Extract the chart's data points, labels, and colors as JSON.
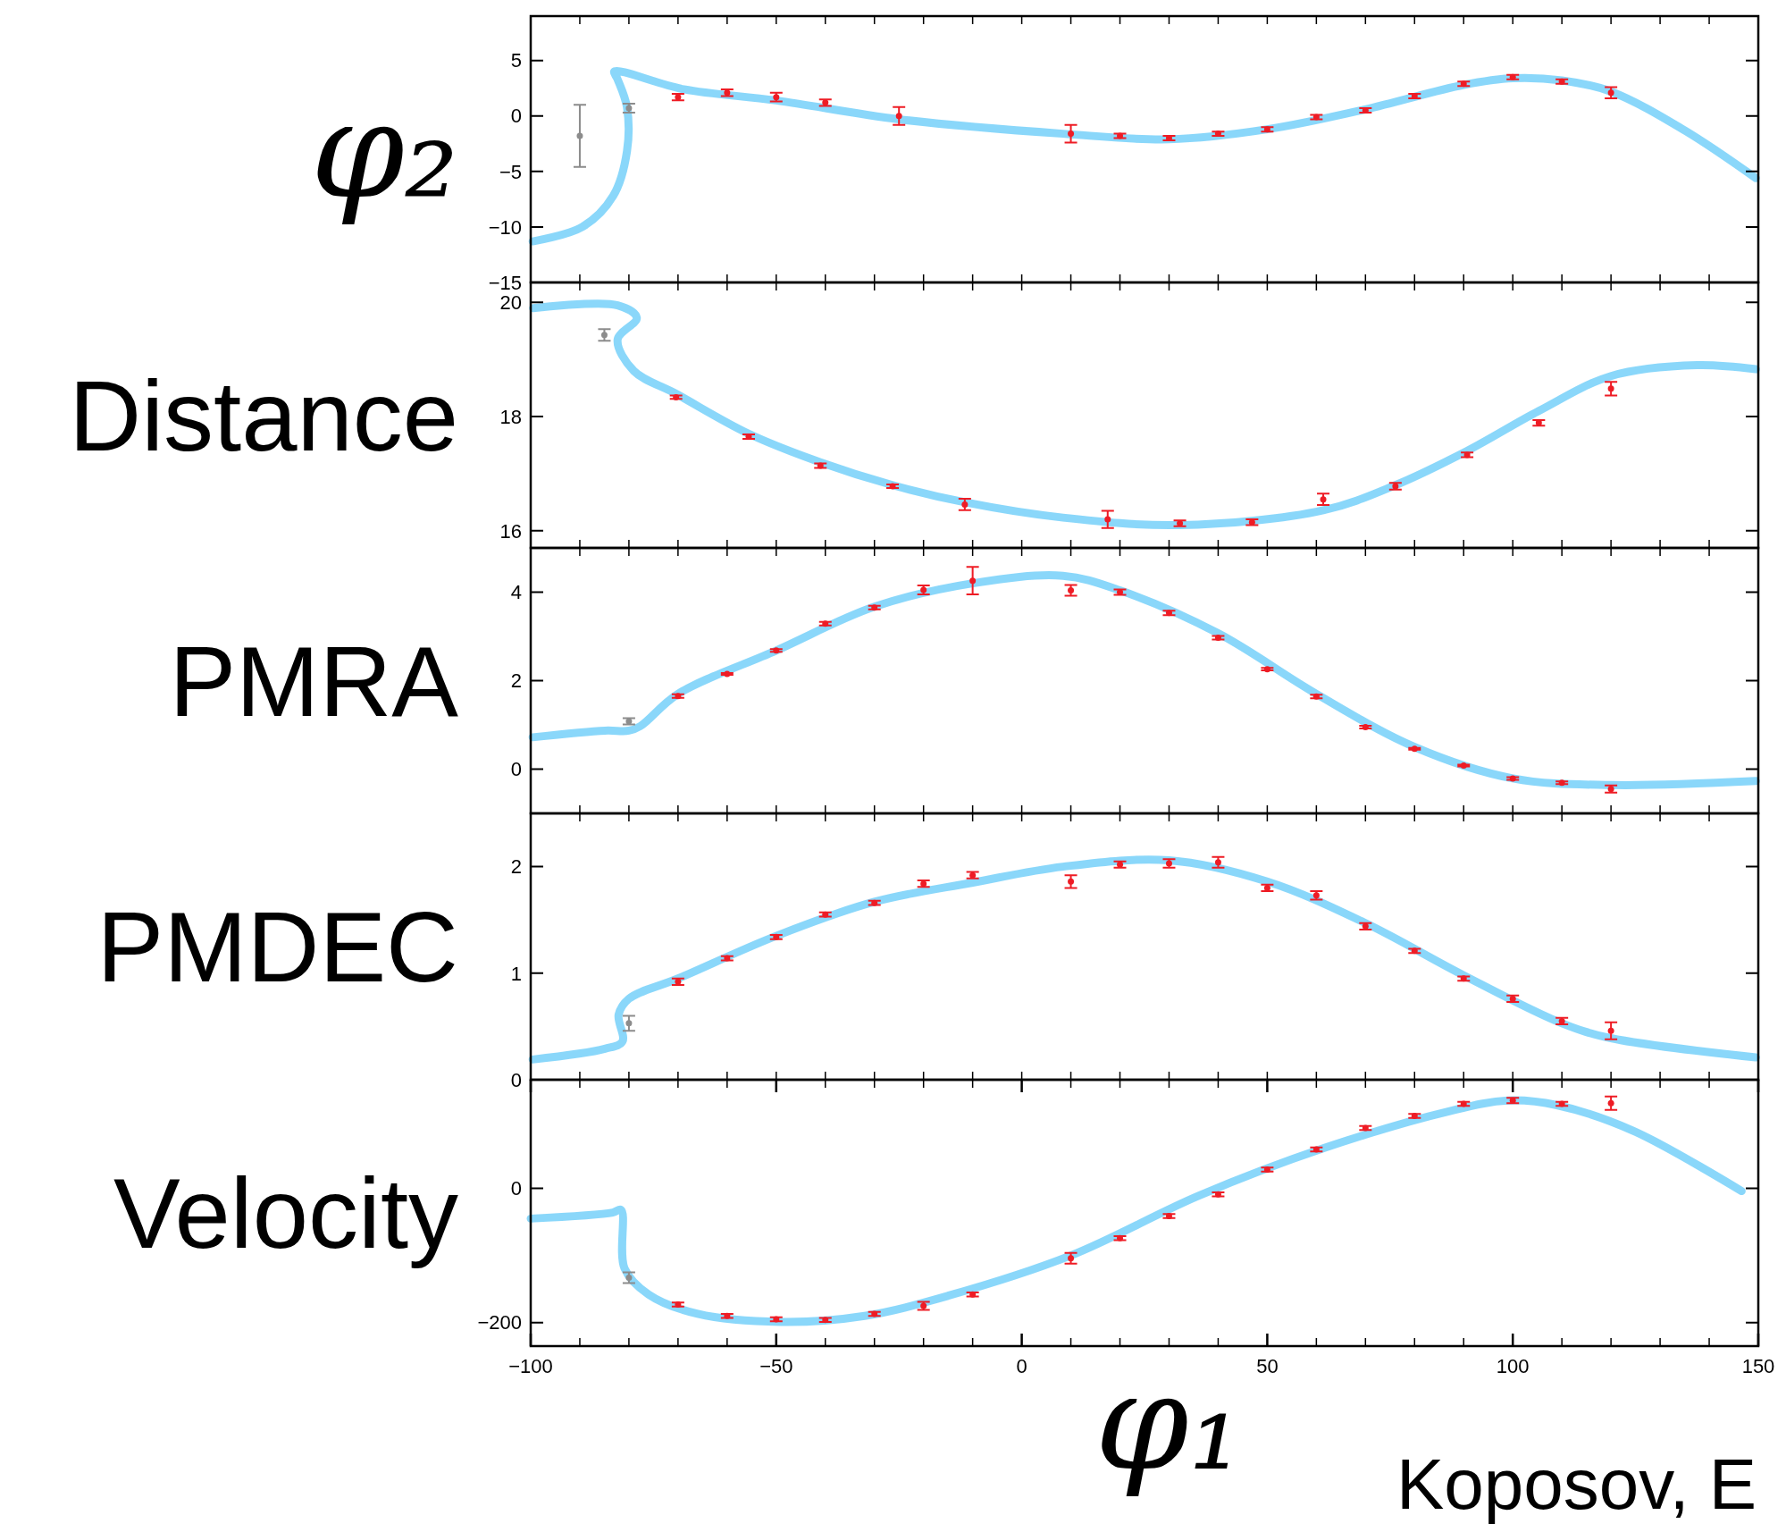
{
  "chart_data": [
    {
      "type": "scatter",
      "ylabel": "φ₂",
      "xlim": [
        -100,
        150
      ],
      "ylim": [
        -15,
        9
      ],
      "yticks": [
        {
          "value": -15,
          "label": "−15"
        },
        {
          "value": -10,
          "label": "−10"
        },
        {
          "value": -5,
          "label": "−5"
        },
        0,
        5
      ],
      "xticks": [
        {
          "value": -100,
          "label": null
        },
        {
          "value": -90,
          "label": null
        },
        {
          "value": -80,
          "label": null
        },
        {
          "value": -70,
          "label": null
        },
        {
          "value": -60,
          "label": null
        },
        {
          "value": -50,
          "label": null
        },
        {
          "value": -40,
          "label": null
        },
        {
          "value": -30,
          "label": null
        },
        {
          "value": -20,
          "label": null
        },
        {
          "value": -10,
          "label": null
        },
        {
          "value": 0,
          "label": null
        },
        {
          "value": 10,
          "label": null
        },
        {
          "value": 20,
          "label": null
        },
        {
          "value": 30,
          "label": null
        },
        {
          "value": 40,
          "label": null
        },
        {
          "value": 50,
          "label": null
        },
        {
          "value": 60,
          "label": null
        },
        {
          "value": 70,
          "label": null
        },
        {
          "value": 80,
          "label": null
        },
        {
          "value": 90,
          "label": null
        },
        {
          "value": 100,
          "label": null
        },
        {
          "value": 110,
          "label": null
        },
        {
          "value": 120,
          "label": null
        },
        {
          "value": 130,
          "label": null
        },
        {
          "value": 140,
          "label": null
        },
        {
          "value": 150,
          "label": null
        }
      ],
      "tick_labels": "y",
      "grid": false,
      "series": [
        {
          "type": "line",
          "color": "#29b6f6",
          "x": [
            -99.6,
            -89.5,
            -83.2,
            -80.4,
            -80.4,
            -82.3,
            -83,
            -68.8,
            -50,
            -25,
            8.4,
            30,
            50,
            70,
            90,
            100,
            110,
            120,
            135,
            149.5
          ],
          "values": [
            -11.3,
            -10,
            -7.2,
            -3.2,
            0.8,
            3.3,
            4,
            2.4,
            1.4,
            -0.3,
            -1.6,
            -2.1,
            -1.2,
            0.6,
            2.8,
            3.4,
            3.2,
            2.2,
            -1.3,
            -5.6
          ]
        },
        {
          "color": "#8c8c8c",
          "x": [
            -90
          ],
          "values": [
            -1.8
          ],
          "errors": [
            2.8
          ]
        },
        {
          "color": "#8c8c8c",
          "x": [
            -80
          ],
          "values": [
            0.7
          ],
          "errors": [
            0.4
          ]
        },
        {
          "color": "#ee1c25",
          "x": [
            -70,
            -60,
            -50,
            -40,
            -25,
            10,
            20,
            30,
            40,
            50,
            60,
            70,
            80,
            90,
            100,
            110,
            120
          ],
          "values": [
            1.7,
            2.1,
            1.7,
            1.2,
            0,
            -1.6,
            -1.8,
            -2.0,
            -1.6,
            -1.2,
            -0.1,
            0.5,
            1.8,
            2.9,
            3.5,
            3.1,
            2.1
          ],
          "errors": [
            0.3,
            0.3,
            0.4,
            0.3,
            0.8,
            0.8,
            0.2,
            0.2,
            0.2,
            0.2,
            0.2,
            0.2,
            0.2,
            0.2,
            0.2,
            0.2,
            0.5
          ]
        }
      ]
    },
    {
      "type": "scatter",
      "ylabel": "Distance",
      "xlim": [
        -100,
        150
      ],
      "ylim": [
        15.7,
        20.35
      ],
      "yticks": [
        16,
        18,
        20
      ],
      "xticks": [
        {
          "value": -100,
          "label": null
        },
        {
          "value": -90,
          "label": null
        },
        {
          "value": -80,
          "label": null
        },
        {
          "value": -70,
          "label": null
        },
        {
          "value": -60,
          "label": null
        },
        {
          "value": -50,
          "label": null
        },
        {
          "value": -40,
          "label": null
        },
        {
          "value": -30,
          "label": null
        },
        {
          "value": -20,
          "label": null
        },
        {
          "value": -10,
          "label": null
        },
        {
          "value": 0,
          "label": null
        },
        {
          "value": 10,
          "label": null
        },
        {
          "value": 20,
          "label": null
        },
        {
          "value": 30,
          "label": null
        },
        {
          "value": 40,
          "label": null
        },
        {
          "value": 50,
          "label": null
        },
        {
          "value": 60,
          "label": null
        },
        {
          "value": 70,
          "label": null
        },
        {
          "value": 80,
          "label": null
        },
        {
          "value": 90,
          "label": null
        },
        {
          "value": 100,
          "label": null
        },
        {
          "value": 110,
          "label": null
        },
        {
          "value": 120,
          "label": null
        },
        {
          "value": 130,
          "label": null
        },
        {
          "value": 140,
          "label": null
        },
        {
          "value": 150,
          "label": null
        }
      ],
      "tick_labels": "y",
      "grid": false,
      "series": [
        {
          "type": "line",
          "color": "#29b6f6",
          "x": [
            -99.5,
            -82.3,
            -78.4,
            -82.3,
            -79,
            -70.4,
            -55.6,
            -41,
            -26.3,
            -11.6,
            8.4,
            32.2,
            61.4,
            76.1,
            90.7,
            105.3,
            120,
            137.5,
            149.5
          ],
          "values": [
            19.9,
            19.95,
            19.73,
            19.35,
            18.8,
            18.4,
            17.7,
            17.2,
            16.8,
            16.5,
            16.23,
            16.1,
            16.36,
            16.8,
            17.4,
            18.1,
            18.71,
            18.9,
            18.83
          ]
        },
        {
          "color": "#8c8c8c",
          "x": [
            -85
          ],
          "values": [
            19.43
          ],
          "errors": [
            0.1
          ]
        },
        {
          "color": "#ee1c25",
          "x": [
            -70.4,
            -55.6,
            -41,
            -26.3,
            -11.6,
            17.5,
            32.2,
            46.9,
            61.4,
            76.1,
            90.7,
            105.3,
            120
          ],
          "values": [
            18.34,
            17.65,
            17.14,
            16.78,
            16.46,
            16.2,
            16.13,
            16.15,
            16.55,
            16.78,
            17.33,
            17.89,
            18.49
          ],
          "errors": [
            0.03,
            0.04,
            0.04,
            0.03,
            0.1,
            0.15,
            0.05,
            0.05,
            0.1,
            0.06,
            0.04,
            0.05,
            0.12
          ]
        }
      ]
    },
    {
      "type": "scatter",
      "ylabel": "PMRA",
      "xlim": [
        -100,
        150
      ],
      "ylim": [
        -1,
        5
      ],
      "yticks": [
        0,
        2,
        4
      ],
      "xticks": [
        {
          "value": -100,
          "label": null
        },
        {
          "value": -90,
          "label": null
        },
        {
          "value": -80,
          "label": null
        },
        {
          "value": -70,
          "label": null
        },
        {
          "value": -60,
          "label": null
        },
        {
          "value": -50,
          "label": null
        },
        {
          "value": -40,
          "label": null
        },
        {
          "value": -30,
          "label": null
        },
        {
          "value": -20,
          "label": null
        },
        {
          "value": -10,
          "label": null
        },
        {
          "value": 0,
          "label": null
        },
        {
          "value": 10,
          "label": null
        },
        {
          "value": 20,
          "label": null
        },
        {
          "value": 30,
          "label": null
        },
        {
          "value": 40,
          "label": null
        },
        {
          "value": 50,
          "label": null
        },
        {
          "value": 60,
          "label": null
        },
        {
          "value": 70,
          "label": null
        },
        {
          "value": 80,
          "label": null
        },
        {
          "value": 90,
          "label": null
        },
        {
          "value": 100,
          "label": null
        },
        {
          "value": 110,
          "label": null
        },
        {
          "value": 120,
          "label": null
        },
        {
          "value": 130,
          "label": null
        },
        {
          "value": 140,
          "label": null
        },
        {
          "value": 150,
          "label": null
        }
      ],
      "tick_labels": "y",
      "grid": false,
      "series": [
        {
          "type": "line",
          "color": "#29b6f6",
          "x": [
            -99.6,
            -84.9,
            -80,
            -77.7,
            -70,
            -50,
            -30,
            -10,
            8.4,
            20,
            40,
            60,
            80,
            100,
            120,
            149.5
          ],
          "values": [
            0.72,
            0.87,
            0.87,
            0.97,
            1.7,
            2.68,
            3.67,
            4.2,
            4.37,
            4.04,
            3.07,
            1.7,
            0.5,
            -0.21,
            -0.36,
            -0.27
          ]
        },
        {
          "color": "#8c8c8c",
          "x": [
            -80
          ],
          "values": [
            1.08
          ],
          "errors": [
            0.07
          ]
        },
        {
          "color": "#ee1c25",
          "x": [
            -70,
            -60,
            -50,
            -40,
            -30,
            -20,
            -10,
            10,
            20,
            30,
            40,
            50,
            60,
            70,
            80,
            90,
            100,
            110,
            120
          ],
          "values": [
            1.65,
            2.15,
            2.68,
            3.29,
            3.65,
            4.05,
            4.26,
            4.04,
            4.0,
            3.53,
            2.97,
            2.26,
            1.64,
            0.95,
            0.46,
            0.08,
            -0.21,
            -0.31,
            -0.45
          ],
          "errors": [
            0.04,
            0.02,
            0.03,
            0.04,
            0.04,
            0.1,
            0.31,
            0.12,
            0.06,
            0.05,
            0.04,
            0.03,
            0.04,
            0.03,
            0.02,
            0.02,
            0.03,
            0.03,
            0.08
          ]
        }
      ]
    },
    {
      "type": "scatter",
      "ylabel": "PMDEC",
      "xlim": [
        -100,
        150
      ],
      "ylim": [
        0,
        2.5
      ],
      "yticks": [
        0,
        1,
        2
      ],
      "xticks": [
        {
          "value": -100,
          "label": null
        },
        {
          "value": -90,
          "label": null
        },
        {
          "value": -80,
          "label": null
        },
        {
          "value": -70,
          "label": null
        },
        {
          "value": -60,
          "label": null
        },
        {
          "value": -50,
          "label": null
        },
        {
          "value": -40,
          "label": null
        },
        {
          "value": -30,
          "label": null
        },
        {
          "value": -20,
          "label": null
        },
        {
          "value": -10,
          "label": null
        },
        {
          "value": 0,
          "label": null
        },
        {
          "value": 10,
          "label": null
        },
        {
          "value": 20,
          "label": null
        },
        {
          "value": 30,
          "label": null
        },
        {
          "value": 40,
          "label": null
        },
        {
          "value": 50,
          "label": null
        },
        {
          "value": 60,
          "label": null
        },
        {
          "value": 70,
          "label": null
        },
        {
          "value": 80,
          "label": null
        },
        {
          "value": 90,
          "label": null
        },
        {
          "value": 100,
          "label": null
        },
        {
          "value": 110,
          "label": null
        },
        {
          "value": 120,
          "label": null
        },
        {
          "value": 130,
          "label": null
        },
        {
          "value": 140,
          "label": null
        },
        {
          "value": 150,
          "label": null
        }
      ],
      "tick_labels": "y",
      "grid": false,
      "series": [
        {
          "type": "line",
          "color": "#29b6f6",
          "x": [
            -99.6,
            -84.9,
            -81.3,
            -82.1,
            -80,
            -70,
            -50,
            -30,
            -10,
            8.4,
            30,
            50,
            70,
            90,
            110,
            120,
            149.5
          ],
          "values": [
            0.19,
            0.29,
            0.36,
            0.61,
            0.76,
            0.95,
            1.35,
            1.67,
            1.85,
            2.0,
            2.06,
            1.86,
            1.47,
            0.98,
            0.53,
            0.39,
            0.21
          ]
        },
        {
          "color": "#8c8c8c",
          "x": [
            -80
          ],
          "values": [
            0.53
          ],
          "errors": [
            0.07
          ]
        },
        {
          "color": "#ee1c25",
          "x": [
            -70,
            -60,
            -50,
            -40,
            -30,
            -20,
            -10,
            10,
            20,
            30,
            40,
            50,
            60,
            70,
            80,
            90,
            100,
            110,
            120
          ],
          "values": [
            0.92,
            1.14,
            1.34,
            1.55,
            1.66,
            1.84,
            1.92,
            1.86,
            2.02,
            2.03,
            2.04,
            1.8,
            1.73,
            1.44,
            1.21,
            0.95,
            0.76,
            0.55,
            0.46
          ],
          "errors": [
            0.03,
            0.02,
            0.02,
            0.02,
            0.02,
            0.03,
            0.03,
            0.06,
            0.03,
            0.04,
            0.05,
            0.03,
            0.04,
            0.03,
            0.02,
            0.02,
            0.03,
            0.03,
            0.08
          ]
        }
      ]
    },
    {
      "type": "scatter",
      "ylabel": "Velocity",
      "xlabel": "φ₁",
      "annotations": [
        "Koposov, E"
      ],
      "xlim": [
        -100,
        150
      ],
      "ylim": [
        -235,
        162
      ],
      "yticks": [
        {
          "value": -200,
          "label": "−200"
        },
        0
      ],
      "xticks": [
        {
          "value": -100,
          "label": "−100"
        },
        {
          "value": -90,
          "label": null
        },
        {
          "value": -80,
          "label": null
        },
        {
          "value": -70,
          "label": null
        },
        {
          "value": -60,
          "label": null
        },
        {
          "value": -50,
          "label": "−50"
        },
        {
          "value": -40,
          "label": null
        },
        {
          "value": -30,
          "label": null
        },
        {
          "value": -20,
          "label": null
        },
        {
          "value": -10,
          "label": null
        },
        0,
        {
          "value": 10,
          "label": null
        },
        {
          "value": 20,
          "label": null
        },
        {
          "value": 30,
          "label": null
        },
        {
          "value": 40,
          "label": null
        },
        50,
        {
          "value": 60,
          "label": null
        },
        {
          "value": 70,
          "label": null
        },
        {
          "value": 80,
          "label": null
        },
        {
          "value": 90,
          "label": null
        },
        100,
        {
          "value": 110,
          "label": null
        },
        {
          "value": 120,
          "label": null
        },
        {
          "value": 130,
          "label": null
        },
        {
          "value": 140,
          "label": null
        },
        150
      ],
      "grid": false,
      "series": [
        {
          "type": "line",
          "color": "#29b6f6",
          "x": [
            -100,
            -83.3,
            -81.6,
            -80.9,
            -76,
            -66,
            -49,
            -32,
            -15,
            10,
            36,
            61.5,
            87,
            99,
            109,
            124.5,
            146.6
          ],
          "values": [
            -45,
            -36,
            -32,
            -119,
            -158,
            -187,
            -199,
            -190,
            -160,
            -100,
            -11,
            60,
            115,
            131,
            124,
            86,
            -4
          ]
        },
        {
          "color": "#8c8c8c",
          "x": [
            -80
          ],
          "values": [
            -133
          ],
          "errors": [
            8
          ]
        },
        {
          "color": "#ee1c25",
          "x": [
            -70,
            -60,
            -50,
            -40,
            -30,
            -20,
            -10,
            10,
            20,
            30,
            40,
            50,
            60,
            70,
            80,
            90,
            100,
            110,
            120
          ],
          "values": [
            -173,
            -190,
            -195,
            -196,
            -187,
            -175,
            -158,
            -104,
            -74,
            -41,
            -9,
            28,
            58,
            90,
            108,
            126,
            131,
            126,
            127
          ],
          "errors": [
            3,
            3,
            3,
            3,
            3,
            6,
            3,
            8,
            3,
            3,
            3,
            3,
            3,
            3,
            3,
            3,
            4,
            3,
            10
          ]
        }
      ]
    }
  ]
}
